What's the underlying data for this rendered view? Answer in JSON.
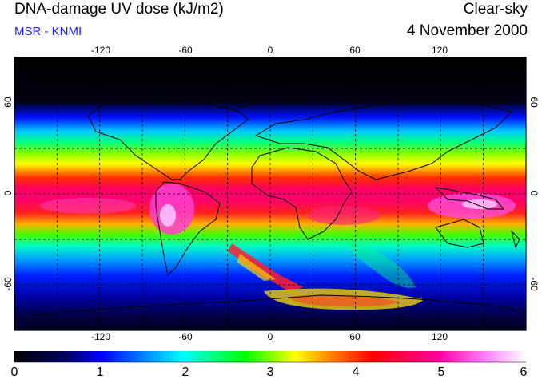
{
  "header": {
    "title": "DNA-damage UV dose (kJ/m2)",
    "subtitle": "MSR - KNMI",
    "condition": "Clear-sky",
    "date": "4 November 2000"
  },
  "map": {
    "lon_ticks": [
      "-120",
      "-60",
      "0",
      "60",
      "120"
    ],
    "lat_ticks": [
      "60",
      "0",
      "-60"
    ],
    "gridlines": "dashed every 30 degrees"
  },
  "colorbar": {
    "labels": [
      "0",
      "1",
      "2",
      "3",
      "4",
      "5",
      "6"
    ],
    "colors": [
      "#000000",
      "#0000ff",
      "#00ffff",
      "#00ff00",
      "#ffff00",
      "#ff0000",
      "#ff00ff",
      "#ffffff"
    ]
  }
}
